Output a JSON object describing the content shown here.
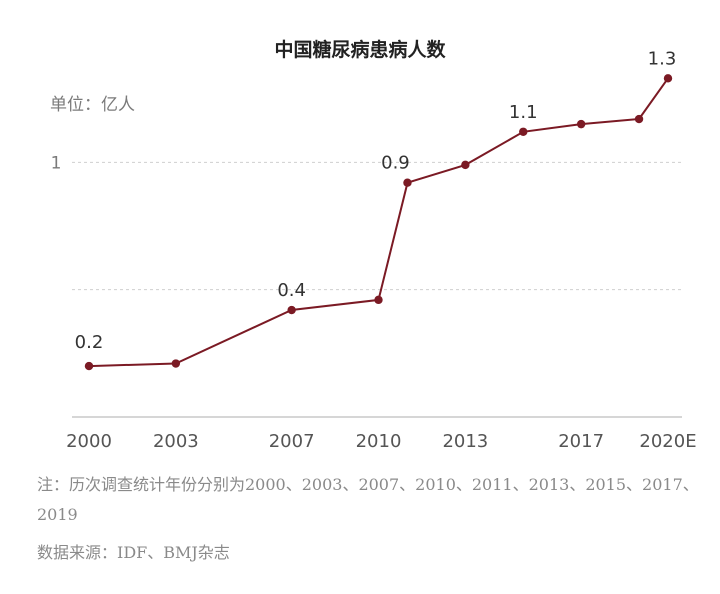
{
  "chart_data": {
    "type": "line",
    "title": "中国糖尿病患病人数",
    "unit_label": "单位：亿人",
    "x": [
      2000,
      2003,
      2007,
      2010,
      2011,
      2013,
      2015,
      2017,
      2019,
      2020
    ],
    "values": [
      0.2,
      0.21,
      0.42,
      0.46,
      0.92,
      0.99,
      1.12,
      1.15,
      1.17,
      1.33
    ],
    "x_tick_labels": [
      {
        "x": 2000,
        "label": "2000"
      },
      {
        "x": 2003,
        "label": "2003"
      },
      {
        "x": 2007,
        "label": "2007"
      },
      {
        "x": 2010,
        "label": "2010"
      },
      {
        "x": 2013,
        "label": "2013"
      },
      {
        "x": 2017,
        "label": "2017"
      },
      {
        "x": 2020,
        "label": "2020E"
      }
    ],
    "y_tick_labels": [
      {
        "y": 1,
        "label": "1"
      }
    ],
    "gridlines_y": [
      0.5,
      1
    ],
    "ylim": [
      0,
      1.5
    ],
    "xlim": [
      2000,
      2020
    ],
    "data_labels": [
      {
        "x": 2000,
        "text": "0.2"
      },
      {
        "x": 2007,
        "text": "0.4"
      },
      {
        "x": 2011,
        "text": "0.9"
      },
      {
        "x": 2015,
        "text": "1.1"
      },
      {
        "x": 2020,
        "text": "1.3"
      }
    ],
    "grid": true,
    "colors": {
      "series": "#7b1a24",
      "grid": "#cfcfcf",
      "axis": "#bdbdbd"
    }
  },
  "footer": {
    "note": "注：历次调查统计年份分别为2000、2003、2007、2010、2011、2013、2015、2017、2019",
    "source": "数据来源：IDF、BMJ杂志"
  }
}
